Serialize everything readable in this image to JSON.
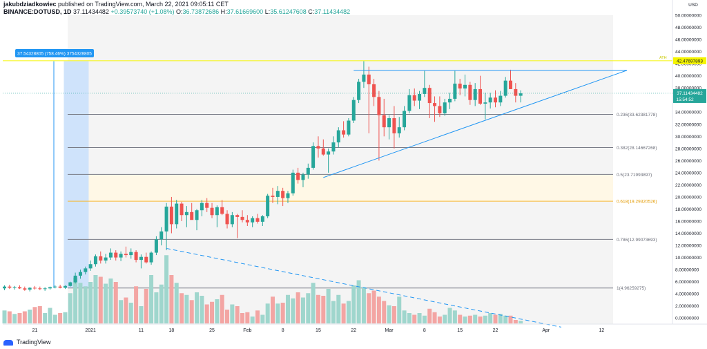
{
  "header": {
    "author": "jakubdziadkowiec",
    "published": "published on TradingView.com, March 22, 2021 09:05:11 CET",
    "symbol": "BINANCE:DOTUSD, 1D",
    "last": "37.11434482",
    "change": "+0.39573740 (+1.08%)",
    "open_label": "O:",
    "open": "36.73872686",
    "high_label": "H:",
    "high": "37.61669600",
    "low_label": "L:",
    "low": "35.61247608",
    "close_label": "C:",
    "close": "37.11434482"
  },
  "footer": {
    "brand": "TradingView"
  },
  "colors": {
    "up": "#26a69a",
    "down": "#ef5350",
    "vol_up": "#9fd6cd",
    "vol_down": "#f3a5a3",
    "fib": "#787b86",
    "fib_golden": "#f7b731",
    "trend": "#2196f3",
    "ath": "#f5f500",
    "measure_fill": "#cfe3fb",
    "measure_label": "#2196f3"
  },
  "chart_data": {
    "type": "candlestick",
    "currency": "USD",
    "y_axis": {
      "min": -1,
      "max": 50,
      "step": 2,
      "ticks": [
        "50.00000000",
        "48.00000000",
        "46.00000000",
        "44.00000000",
        "42.00000000",
        "40.00000000",
        "38.00000000",
        "36.00000000",
        "34.00000000",
        "32.00000000",
        "30.00000000",
        "28.00000000",
        "26.00000000",
        "24.00000000",
        "22.00000000",
        "20.00000000",
        "18.00000000",
        "16.00000000",
        "14.00000000",
        "12.00000000",
        "10.00000000",
        "8.00000000",
        "6.00000000",
        "4.00000000",
        "2.00000000",
        "0.00000000"
      ]
    },
    "x_axis": {
      "ticks": [
        {
          "day": 6,
          "label": "21"
        },
        {
          "day": 17,
          "label": "2021"
        },
        {
          "day": 27,
          "label": "11"
        },
        {
          "day": 33,
          "label": "18"
        },
        {
          "day": 41,
          "label": "25"
        },
        {
          "day": 48,
          "label": "Feb"
        },
        {
          "day": 55,
          "label": "8"
        },
        {
          "day": 62,
          "label": "15"
        },
        {
          "day": 69,
          "label": "22"
        },
        {
          "day": 76,
          "label": "Mar"
        },
        {
          "day": 83,
          "label": "8"
        },
        {
          "day": 90,
          "label": "15"
        },
        {
          "day": 97,
          "label": "22"
        },
        {
          "day": 107,
          "label": "Apr"
        },
        {
          "day": 118,
          "label": "12"
        }
      ]
    },
    "candles": [
      [
        4.9,
        5.4,
        4.6,
        5.2
      ],
      [
        5.2,
        5.5,
        4.8,
        5.0
      ],
      [
        5.0,
        5.3,
        4.7,
        5.1
      ],
      [
        5.1,
        5.4,
        4.8,
        4.9
      ],
      [
        4.9,
        5.2,
        4.5,
        4.7
      ],
      [
        4.7,
        5.1,
        4.4,
        5.0
      ],
      [
        5.0,
        5.3,
        4.7,
        4.9
      ],
      [
        4.9,
        5.2,
        4.6,
        4.8
      ],
      [
        4.8,
        5.1,
        4.5,
        4.9
      ],
      [
        4.9,
        5.2,
        4.7,
        5.1
      ],
      [
        5.1,
        5.4,
        4.9,
        5.2
      ],
      [
        5.2,
        5.5,
        4.9,
        5.0
      ],
      [
        5.0,
        5.4,
        4.8,
        5.3
      ],
      [
        5.3,
        6.0,
        5.2,
        5.9
      ],
      [
        5.9,
        7.5,
        5.7,
        7.0
      ],
      [
        7.0,
        8.0,
        6.5,
        7.6
      ],
      [
        7.6,
        8.5,
        7.2,
        8.2
      ],
      [
        8.2,
        9.5,
        7.8,
        8.9
      ],
      [
        8.9,
        10.5,
        8.5,
        10.2
      ],
      [
        10.2,
        11.0,
        9.0,
        9.5
      ],
      [
        9.5,
        10.6,
        9.0,
        10.0
      ],
      [
        10.0,
        11.5,
        9.6,
        10.8
      ],
      [
        10.8,
        11.2,
        9.5,
        10.0
      ],
      [
        10.0,
        11.0,
        9.4,
        10.6
      ],
      [
        10.6,
        11.8,
        10.0,
        10.4
      ],
      [
        10.4,
        11.5,
        9.8,
        10.9
      ],
      [
        10.9,
        11.2,
        9.2,
        9.6
      ],
      [
        9.6,
        10.5,
        8.2,
        10.1
      ],
      [
        10.1,
        10.8,
        9.0,
        9.2
      ],
      [
        9.2,
        11.0,
        8.8,
        10.8
      ],
      [
        10.8,
        13.5,
        10.4,
        13.0
      ],
      [
        13.0,
        15.0,
        12.0,
        14.3
      ],
      [
        14.3,
        19.0,
        11.2,
        18.4
      ],
      [
        18.4,
        20.0,
        14.0,
        15.5
      ],
      [
        15.5,
        19.5,
        14.8,
        18.9
      ],
      [
        18.9,
        19.2,
        16.0,
        17.0
      ],
      [
        17.0,
        18.5,
        15.0,
        17.5
      ],
      [
        17.5,
        19.0,
        16.5,
        16.2
      ],
      [
        16.2,
        18.0,
        14.5,
        17.8
      ],
      [
        17.8,
        19.5,
        16.8,
        19.0
      ],
      [
        19.0,
        19.8,
        17.5,
        18.2
      ],
      [
        18.2,
        19.0,
        16.5,
        17.0
      ],
      [
        17.0,
        18.6,
        15.0,
        18.3
      ],
      [
        18.3,
        19.5,
        17.0,
        17.2
      ],
      [
        17.2,
        17.8,
        14.8,
        15.5
      ],
      [
        15.5,
        17.5,
        15.0,
        17.0
      ],
      [
        17.0,
        17.2,
        13.2,
        16.7
      ],
      [
        16.7,
        17.8,
        15.8,
        16.2
      ],
      [
        16.2,
        17.0,
        15.2,
        15.8
      ],
      [
        15.8,
        16.8,
        15.0,
        16.5
      ],
      [
        16.5,
        17.2,
        15.6,
        15.9
      ],
      [
        15.9,
        17.0,
        15.2,
        16.8
      ],
      [
        16.8,
        20.5,
        16.5,
        20.2
      ],
      [
        20.2,
        21.5,
        19.0,
        20.0
      ],
      [
        20.0,
        21.8,
        18.8,
        21.0
      ],
      [
        21.0,
        21.5,
        18.5,
        19.8
      ],
      [
        19.8,
        21.0,
        19.0,
        20.6
      ],
      [
        20.6,
        24.5,
        20.2,
        24.0
      ],
      [
        24.0,
        24.8,
        22.2,
        22.8
      ],
      [
        22.8,
        24.0,
        21.6,
        23.7
      ],
      [
        23.7,
        25.5,
        23.0,
        24.8
      ],
      [
        24.8,
        29.0,
        24.5,
        28.4
      ],
      [
        28.4,
        30.0,
        26.5,
        28.0
      ],
      [
        28.0,
        29.5,
        26.8,
        27.0
      ],
      [
        27.0,
        28.0,
        24.0,
        27.5
      ],
      [
        27.5,
        30.0,
        27.0,
        29.0
      ],
      [
        29.0,
        31.5,
        28.2,
        31.0
      ],
      [
        31.0,
        32.5,
        29.8,
        30.3
      ],
      [
        30.3,
        33.0,
        30.0,
        32.6
      ],
      [
        32.6,
        36.5,
        32.2,
        36.0
      ],
      [
        36.0,
        39.5,
        35.5,
        39.0
      ],
      [
        39.0,
        42.4,
        38.0,
        40.2
      ],
      [
        40.2,
        41.5,
        30.5,
        38.6
      ],
      [
        38.6,
        39.5,
        35.0,
        36.5
      ],
      [
        36.5,
        37.5,
        26.0,
        33.5
      ],
      [
        33.5,
        36.2,
        30.0,
        31.5
      ],
      [
        31.5,
        33.5,
        29.5,
        33.0
      ],
      [
        33.0,
        35.0,
        28.0,
        30.5
      ],
      [
        30.5,
        33.2,
        29.8,
        31.5
      ],
      [
        31.5,
        35.0,
        31.0,
        34.2
      ],
      [
        34.2,
        37.8,
        33.8,
        36.8
      ],
      [
        36.8,
        37.9,
        35.0,
        35.9
      ],
      [
        35.9,
        37.5,
        34.5,
        37.0
      ],
      [
        37.0,
        40.8,
        36.5,
        38.0
      ],
      [
        38.0,
        38.5,
        33.0,
        35.5
      ],
      [
        35.5,
        36.6,
        32.4,
        35.0
      ],
      [
        35.0,
        36.6,
        33.2,
        33.8
      ],
      [
        33.8,
        36.2,
        33.4,
        35.6
      ],
      [
        35.6,
        37.2,
        34.5,
        36.2
      ],
      [
        36.2,
        40.8,
        35.8,
        38.7
      ],
      [
        38.7,
        39.5,
        36.8,
        37.9
      ],
      [
        37.9,
        40.2,
        36.6,
        38.5
      ],
      [
        38.5,
        39.0,
        35.2,
        36.0
      ],
      [
        36.0,
        38.8,
        35.0,
        37.8
      ],
      [
        37.8,
        40.0,
        35.2,
        35.4
      ],
      [
        35.4,
        37.2,
        32.8,
        35.6
      ],
      [
        35.6,
        37.2,
        34.6,
        36.4
      ],
      [
        36.4,
        37.6,
        34.8,
        35.6
      ],
      [
        35.6,
        37.5,
        35.0,
        36.7
      ],
      [
        36.7,
        39.8,
        36.4,
        39.2
      ],
      [
        39.2,
        41.0,
        37.8,
        37.8
      ],
      [
        37.8,
        38.8,
        35.6,
        36.7
      ],
      [
        36.7,
        37.6,
        35.6,
        37.1
      ]
    ],
    "volumes": [
      1.5,
      1.4,
      1.1,
      1.2,
      1.4,
      1.6,
      1.9,
      2.0,
      1.2,
      1.8,
      1.0,
      1.2,
      1.3,
      3.5,
      5.3,
      4.7,
      4.3,
      4.8,
      5.6,
      5.4,
      4.6,
      5.2,
      4.8,
      2.7,
      3.0,
      2.4,
      4.3,
      2.0,
      4.0,
      5.6,
      3.6,
      4.5,
      7.9,
      5.6,
      4.7,
      3.5,
      3.3,
      2.7,
      3.6,
      3.2,
      2.2,
      2.5,
      2.8,
      3.3,
      1.6,
      2.2,
      2.0,
      1.2,
      1.3,
      0.8,
      1.5,
      1.0,
      2.3,
      3.1,
      2.3,
      2.4,
      3.3,
      2.9,
      3.6,
      3.0,
      3.5,
      4.7,
      3.3,
      3.2,
      4.0,
      2.6,
      3.3,
      2.3,
      2.6,
      4.4,
      5.0,
      4.2,
      3.5,
      3.8,
      3.1,
      2.6,
      2.1,
      2.0,
      3.1,
      1.5,
      1.2,
      1.0,
      1.2,
      0.9,
      1.7,
      1.3,
      0.8,
      1.0,
      1.8,
      1.5,
      1.0,
      0.8,
      0.9,
      1.0,
      0.8,
      0.9,
      1.2,
      1.0,
      1.1,
      0.9,
      0.9,
      0.4,
      0.3
    ],
    "volume_scale_max": 12,
    "fibonacci": [
      {
        "level": "0.236",
        "price": 33.62381778,
        "label": "0.236(33.62381778)"
      },
      {
        "level": "0.382",
        "price": 28.14667268,
        "label": "0.382(28.14667268)"
      },
      {
        "level": "0.5",
        "price": 23.71993897,
        "label": "0.5(23.71993897)"
      },
      {
        "level": "0.618",
        "price": 19.29320526,
        "label": "0.618(19.29320526)"
      },
      {
        "level": "0.786",
        "price": 12.99073693,
        "label": "0.786(12.99073693)"
      },
      {
        "level": "1",
        "price": 4.96259275,
        "label": "1(4.96259275)"
      }
    ],
    "price_range_measure": {
      "from_day": 12,
      "to_day": 18,
      "from_price": 4.96,
      "to_price": 42.4,
      "label": "37.54328805 (758.46%) 3754328805"
    },
    "ath": {
      "price": 42.4769789,
      "label": "42.47697893",
      "tag": "ATH"
    },
    "last_price": {
      "price": 37.11434482,
      "label": "37.11434482",
      "countdown": "15:54:52"
    },
    "trendlines": [
      {
        "from_day": 63,
        "from_price": 23.2,
        "to_day": 123,
        "to_price": 40.9,
        "dashed": false
      },
      {
        "from_day": 69,
        "from_price": 40.9,
        "to_day": 123,
        "to_price": 40.9,
        "dashed": false
      },
      {
        "from_day": 32,
        "from_price": 11.5,
        "to_day": 110,
        "to_price": -1.5,
        "dashed": true
      }
    ]
  }
}
